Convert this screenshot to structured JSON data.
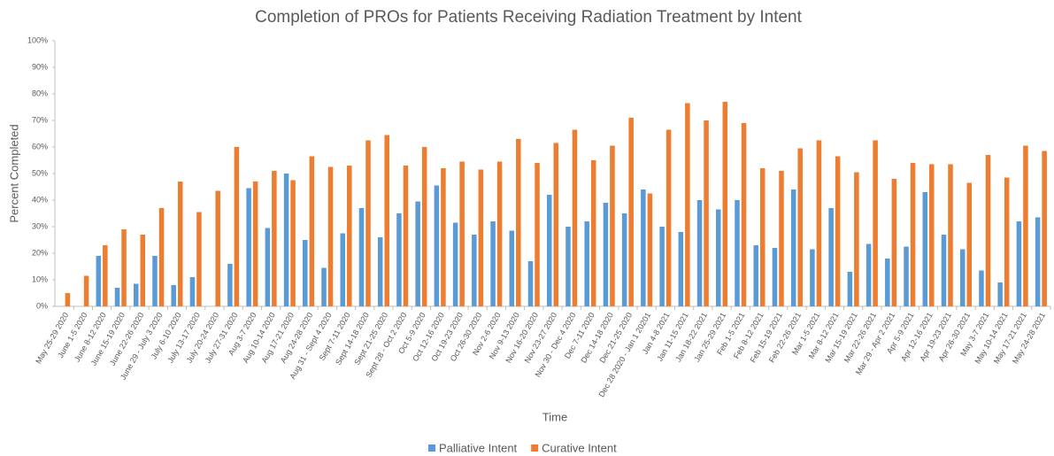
{
  "chart_data": {
    "type": "bar",
    "title": "Completion of PROs for Patients Receiving Radiation Treatment by Intent",
    "x_label": "Time",
    "y_label": "Percent Completed",
    "categories": [
      "May 25-29 2020",
      "June 1-5 2020",
      "June 8-12 2020",
      "June 15-19 2020",
      "June 22-26 2020",
      "June 29 - July 3 2020",
      "July 6-10 2020",
      "July 13-17 2020",
      "July 20-24 2020",
      "July 27-31 2020",
      "Aug 3-7 2020",
      "Aug 10-14 2020",
      "Aug 17-21 2020",
      "Aug 24-28 2020",
      "Aug 31 - Sept 4 2020",
      "Sept 7-11 2020",
      "Sept 14-18 2020",
      "Sept 21-25 2020",
      "Sept 28 - Oct 2 2020",
      "Oct 5-9 2020",
      "Oct 12-16 2020",
      "Oct 19-23 2020",
      "Oct 26-30 2020",
      "Nov 2-6 2020",
      "Nov 9-13 2020",
      "Nov 16-20 2020",
      "Nov 23-27 2020",
      "Nov 30 - Dec 4 2020",
      "Dec 7-11 2020",
      "Dec 14-18 2020",
      "Dec 21-25 2020",
      "Dec 28 2020 - Jan 1 20201",
      "Jan 4-8 2021",
      "Jan 11-15 2021",
      "Jan 18-22 2021",
      "Jan 25-29 2021",
      "Feb 1-5 2021",
      "Feb 8-12 2021",
      "Feb 15-19 2021",
      "Feb 22-26 2021",
      "Mar 1-5 2021",
      "Mar 8-12 2021",
      "Mar 15-19 2021",
      "Mar 22-26 2021",
      "Mar 29 - Apr 2 2021",
      "Apr 5-9 2021",
      "Apr 12-16 2021",
      "Apr 19-23 2021",
      "Apr 26-30 2021",
      "May 3-7 2021",
      "May 10-14 2021",
      "May 17-21 2021",
      "May 24-28 2021"
    ],
    "series": [
      {
        "name": "Palliative Intent",
        "color": "#5b9bd5",
        "values": [
          0,
          0,
          19,
          7,
          8.5,
          19,
          8,
          11,
          0,
          16,
          44.5,
          29.5,
          50,
          25,
          14.5,
          27.5,
          37,
          26,
          35,
          39.5,
          45.5,
          31.5,
          27,
          32,
          28.5,
          17,
          42,
          30,
          32,
          39,
          35,
          44,
          30,
          28,
          40,
          36.5,
          40,
          23,
          22,
          44,
          21.5,
          37,
          13,
          23.5,
          18,
          22.5,
          43,
          27,
          21.5,
          13.5,
          9,
          32,
          33.5
        ]
      },
      {
        "name": "Curative Intent",
        "color": "#ed7d31",
        "values": [
          5,
          11.5,
          23,
          29,
          27,
          37,
          47,
          35.5,
          43.5,
          60,
          47,
          51,
          47.5,
          56.5,
          52.5,
          53,
          62.5,
          64.5,
          53,
          60,
          52,
          54.5,
          51.5,
          54.5,
          63,
          54,
          61.5,
          66.5,
          55,
          60.5,
          71,
          42.5,
          66.5,
          76.5,
          70,
          77,
          69,
          52,
          51,
          59.5,
          62.5,
          56.5,
          50.5,
          62.5,
          48,
          54,
          53.5,
          53.5,
          46.5,
          57,
          48.5,
          60.5,
          58.5
        ]
      }
    ],
    "ylim": [
      0,
      100
    ],
    "yticks": [
      {
        "value": 0,
        "label": "0%"
      },
      {
        "value": 10,
        "label": "10%"
      },
      {
        "value": 20,
        "label": "20%"
      },
      {
        "value": 30,
        "label": "30%"
      },
      {
        "value": 40,
        "label": "40%"
      },
      {
        "value": 50,
        "label": "50%"
      },
      {
        "value": 60,
        "label": "60%"
      },
      {
        "value": 70,
        "label": "70%"
      },
      {
        "value": 80,
        "label": "80%"
      },
      {
        "value": 90,
        "label": "90%"
      },
      {
        "value": 100,
        "label": "100%"
      }
    ],
    "grid": false,
    "legend": "bottom"
  }
}
